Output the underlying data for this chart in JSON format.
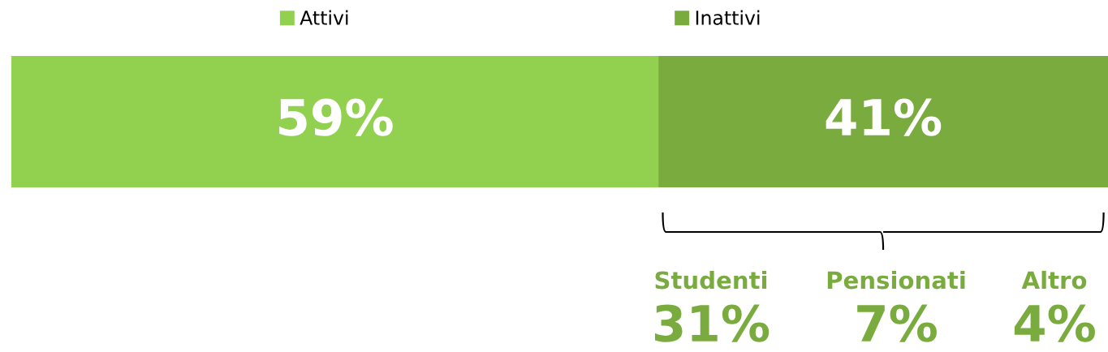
{
  "chart_data": {
    "type": "bar",
    "orientation": "horizontal",
    "stacked": true,
    "categories": [
      null
    ],
    "series": [
      {
        "name": "Attivi",
        "color": "#92d050",
        "values": [
          59
        ],
        "value_labels": [
          "59%"
        ]
      },
      {
        "name": "Inattivi",
        "color": "#7aab3e",
        "values": [
          41
        ],
        "value_labels": [
          "41%"
        ]
      }
    ],
    "legend": "top",
    "annotations": [
      "Studenti",
      "31%",
      "Pensionati",
      "7%",
      "Altro",
      "4%"
    ]
  }
}
